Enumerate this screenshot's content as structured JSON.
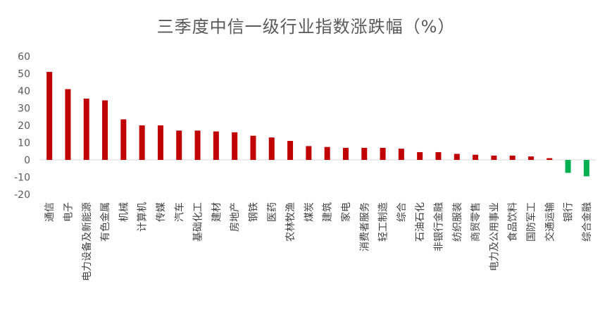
{
  "chart_data": {
    "type": "bar",
    "title": "三季度中信一级行业指数涨跌幅（%）",
    "xlabel": "",
    "ylabel": "",
    "ylim": [
      -20,
      60
    ],
    "yticks": [
      -20,
      -10,
      0,
      10,
      20,
      30,
      40,
      50,
      60
    ],
    "grid": false,
    "legend": "none",
    "colors": {
      "positive": "#C00000",
      "negative": "#00B050",
      "axis": "#D9D9D9"
    },
    "categories": [
      "通信",
      "电子",
      "电力设备及新能源",
      "有色金属",
      "机械",
      "计算机",
      "传媒",
      "汽车",
      "基础化工",
      "建材",
      "房地产",
      "钢铁",
      "医药",
      "农林牧渔",
      "煤炭",
      "建筑",
      "家电",
      "消费者服务",
      "轻工制造",
      "综合",
      "石油石化",
      "非银行金融",
      "纺织服装",
      "商贸零售",
      "电力及公用事业",
      "食品饮料",
      "国防军工",
      "交通运输",
      "银行",
      "综合金融"
    ],
    "values": [
      51,
      41,
      35.5,
      34.5,
      23.5,
      20,
      20,
      17,
      17,
      16.5,
      16,
      14,
      13,
      11,
      8,
      7.5,
      7,
      7,
      7,
      6.5,
      4.5,
      4.5,
      3.5,
      3,
      2.5,
      2.5,
      2,
      1,
      -7.5,
      -9.5
    ]
  }
}
